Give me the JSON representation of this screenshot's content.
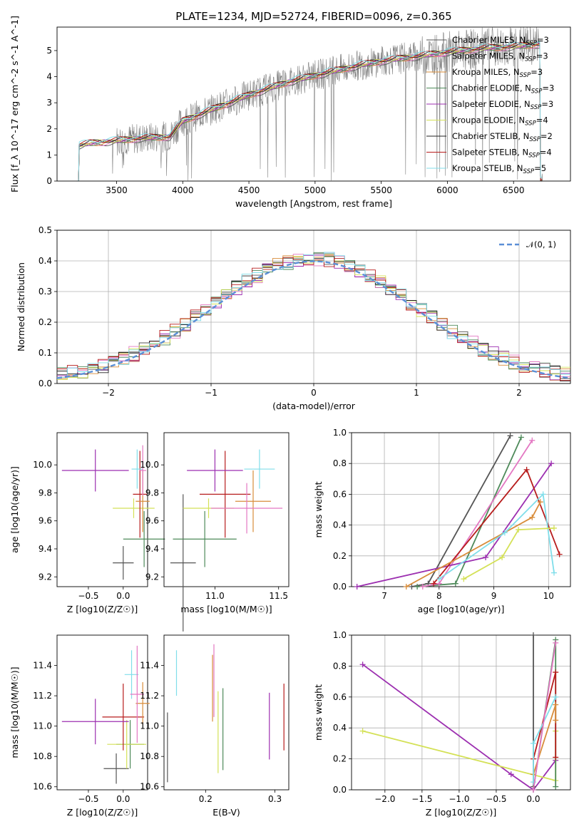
{
  "figure": {
    "title": "PLATE=1234, MJD=52724, FIBERID=0096, z=0.365"
  },
  "legend_entries": [
    {
      "label": "Chabrier MILES, N_SSP=3",
      "color": "#555555"
    },
    {
      "label": "Salpeter MILES, N_SSP=3",
      "color": "#e377c2"
    },
    {
      "label": "Kroupa MILES, N_SSP=3",
      "color": "#d88c3a"
    },
    {
      "label": "Chabrier ELODIE, N_SSP=3",
      "color": "#4e8a5a"
    },
    {
      "label": "Salpeter ELODIE, N_SSP=3",
      "color": "#9c2fb0"
    },
    {
      "label": "Kroupa ELODIE, N_SSP=4",
      "color": "#d4e157"
    },
    {
      "label": "Chabrier STELIB, N_SSP=2",
      "color": "#222222"
    },
    {
      "label": "Salpeter STELIB, N_SSP=4",
      "color": "#b71c1c"
    },
    {
      "label": "Kroupa STELIB, N_SSP=5",
      "color": "#80deea"
    }
  ],
  "chart_data": [
    {
      "type": "line",
      "id": "spectrum",
      "xlabel": "wavelength [Angstrom, rest frame]",
      "ylabel": "Flux [f_λ 10^-17 erg cm^-2 s^-1 A^-1]",
      "xlim": [
        3050,
        6930
      ],
      "ylim": [
        0,
        5.9
      ],
      "xticks": [
        3500,
        4000,
        4500,
        5000,
        5500,
        6000,
        6500
      ],
      "yticks": [
        0,
        1,
        2,
        3,
        4,
        5
      ],
      "grid": false,
      "legend_position": "top-right",
      "data_color": "#808080",
      "model_continuum": {
        "x": [
          3200,
          3300,
          3500,
          3700,
          3900,
          4000,
          4200,
          4500,
          4800,
          5000,
          5300,
          5500,
          5800,
          6000,
          6300,
          6500,
          6700
        ],
        "y": [
          1.35,
          1.45,
          1.55,
          1.65,
          1.7,
          2.3,
          2.7,
          3.3,
          3.8,
          4.05,
          4.4,
          4.6,
          4.8,
          4.95,
          5.1,
          5.15,
          5.25
        ]
      }
    },
    {
      "type": "bar",
      "id": "residual-histogram",
      "xlabel": "(data-model)/error",
      "ylabel": "Normed distribution",
      "xlim": [
        -2.5,
        2.5
      ],
      "ylim": [
        0,
        0.5
      ],
      "xticks": [
        -2,
        -1,
        0,
        1,
        2
      ],
      "yticks": [
        0.0,
        0.1,
        0.2,
        0.3,
        0.4,
        0.5
      ],
      "grid": true,
      "legend_position": "top-right",
      "reference_curve": {
        "name": "N(0,1)",
        "label": "𝒩(0, 1)",
        "color": "#5b8fd6",
        "mean": 0,
        "sigma": 1
      }
    },
    {
      "type": "scatter",
      "id": "age-vs-metallicity",
      "xlabel": "Z [log10(Z/Z☉)]",
      "ylabel": "age [log10(age/yr)]",
      "xlim": [
        -0.95,
        0.35
      ],
      "ylim": [
        9.13,
        10.23
      ],
      "xticks": [
        -0.5,
        0.0
      ],
      "yticks": [
        9.2,
        9.4,
        9.6,
        9.8,
        10.0
      ],
      "points": [
        {
          "x": 0.0,
          "y": 9.3,
          "xerr": 0.15,
          "yerr": 0.12,
          "color": "#555555"
        },
        {
          "x": 0.3,
          "y": 9.47,
          "xerr": 0.3,
          "yerr": 0.2,
          "color": "#4e8a5a"
        },
        {
          "x": 0.15,
          "y": 9.69,
          "xerr": 0.3,
          "yerr": 0.07,
          "color": "#d4e157"
        },
        {
          "x": 0.24,
          "y": 9.79,
          "xerr": 0.1,
          "yerr": 0.31,
          "color": "#b71c1c"
        },
        {
          "x": 0.28,
          "y": 9.74,
          "xerr": 0.1,
          "yerr": 0.22,
          "color": "#d88c3a"
        },
        {
          "x": -0.4,
          "y": 9.96,
          "xerr": 0.48,
          "yerr": 0.15,
          "color": "#9c2fb0"
        },
        {
          "x": 0.2,
          "y": 9.97,
          "xerr": 0.08,
          "yerr": 0.14,
          "color": "#80deea"
        },
        {
          "x": 0.28,
          "y": 9.96,
          "xerr": 0.05,
          "yerr": 0.18,
          "color": "#e377c2"
        }
      ]
    },
    {
      "type": "scatter",
      "id": "age-vs-mass",
      "xlabel": "mass [log10(M/M☉)]",
      "ylabel": "",
      "xlim": [
        10.6,
        11.58
      ],
      "ylim": [
        9.13,
        10.23
      ],
      "xticks": [
        11.0,
        11.5
      ],
      "yticks": [
        9.2,
        9.4,
        9.6,
        9.8,
        10.0
      ],
      "points": [
        {
          "x": 10.75,
          "y": 9.3,
          "xerr": 0.1,
          "yerr": 0.49,
          "color": "#555555"
        },
        {
          "x": 10.92,
          "y": 9.47,
          "xerr": 0.25,
          "yerr": 0.2,
          "color": "#4e8a5a"
        },
        {
          "x": 10.95,
          "y": 9.69,
          "xerr": 0.2,
          "yerr": 0.07,
          "color": "#d4e157"
        },
        {
          "x": 11.08,
          "y": 9.79,
          "xerr": 0.2,
          "yerr": 0.31,
          "color": "#b71c1c"
        },
        {
          "x": 11.3,
          "y": 9.74,
          "xerr": 0.14,
          "yerr": 0.22,
          "color": "#d88c3a"
        },
        {
          "x": 11.0,
          "y": 9.96,
          "xerr": 0.22,
          "yerr": 0.15,
          "color": "#9c2fb0"
        },
        {
          "x": 11.35,
          "y": 9.97,
          "xerr": 0.12,
          "yerr": 0.14,
          "color": "#80deea"
        },
        {
          "x": 11.25,
          "y": 9.69,
          "xerr": 0.28,
          "yerr": 0.18,
          "color": "#e377c2"
        }
      ]
    },
    {
      "type": "line",
      "id": "mass-weight-vs-age",
      "xlabel": "age [log10(age/yr)]",
      "ylabel": "mass weight",
      "xlim": [
        6.4,
        10.4
      ],
      "ylim": [
        0.0,
        1.0
      ],
      "xticks": [
        7,
        8,
        9,
        10
      ],
      "yticks": [
        0.0,
        0.2,
        0.4,
        0.6,
        0.8,
        1.0
      ],
      "grid": true,
      "series": [
        {
          "color": "#555555",
          "x": [
            7.5,
            7.8,
            9.3
          ],
          "y": [
            0.0,
            0.02,
            0.98
          ]
        },
        {
          "color": "#4e8a5a",
          "x": [
            7.6,
            8.3,
            9.5
          ],
          "y": [
            0.0,
            0.02,
            0.97
          ]
        },
        {
          "color": "#e377c2",
          "x": [
            7.7,
            8.0,
            9.7
          ],
          "y": [
            0.0,
            0.02,
            0.95
          ]
        },
        {
          "color": "#9c2fb0",
          "x": [
            6.5,
            8.85,
            10.05
          ],
          "y": [
            0.0,
            0.19,
            0.8
          ]
        },
        {
          "color": "#b71c1c",
          "x": [
            7.9,
            9.6,
            10.2
          ],
          "y": [
            0.02,
            0.76,
            0.21
          ]
        },
        {
          "color": "#d88c3a",
          "x": [
            7.4,
            9.7,
            9.85
          ],
          "y": [
            0.0,
            0.45,
            0.55
          ]
        },
        {
          "color": "#80deea",
          "x": [
            8.0,
            9.2,
            9.9,
            10.1
          ],
          "y": [
            0.05,
            0.35,
            0.6,
            0.09
          ]
        },
        {
          "color": "#d4e157",
          "x": [
            8.45,
            9.15,
            9.45,
            10.1
          ],
          "y": [
            0.05,
            0.19,
            0.37,
            0.38
          ]
        }
      ]
    },
    {
      "type": "scatter",
      "id": "mass-vs-metallicity",
      "xlabel": "Z [log10(Z/Z☉)]",
      "ylabel": "mass [log10(M/M☉)]",
      "xlim": [
        -0.95,
        0.35
      ],
      "ylim": [
        10.58,
        11.6
      ],
      "xticks": [
        -0.5,
        0.0
      ],
      "yticks": [
        10.6,
        10.8,
        11.0,
        11.2,
        11.4
      ],
      "points": [
        {
          "x": -0.1,
          "y": 10.72,
          "xerr": 0.18,
          "yerr": 0.1,
          "color": "#555555"
        },
        {
          "x": 0.1,
          "y": 10.88,
          "xerr": 0.2,
          "yerr": 0.16,
          "color": "#4e8a5a"
        },
        {
          "x": 0.05,
          "y": 10.88,
          "xerr": 0.28,
          "yerr": 0.16,
          "color": "#d4e157"
        },
        {
          "x": 0.0,
          "y": 11.06,
          "xerr": 0.3,
          "yerr": 0.22,
          "color": "#b71c1c"
        },
        {
          "x": 0.28,
          "y": 11.15,
          "xerr": 0.1,
          "yerr": 0.14,
          "color": "#d88c3a"
        },
        {
          "x": -0.4,
          "y": 11.03,
          "xerr": 0.48,
          "yerr": 0.15,
          "color": "#9c2fb0"
        },
        {
          "x": 0.12,
          "y": 11.34,
          "xerr": 0.1,
          "yerr": 0.16,
          "color": "#80deea"
        },
        {
          "x": 0.2,
          "y": 11.21,
          "xerr": 0.1,
          "yerr": 0.32,
          "color": "#e377c2"
        }
      ]
    },
    {
      "type": "scatter",
      "id": "mass-vs-ebv",
      "xlabel": "E(B-V)",
      "ylabel": "",
      "xlim": [
        0.14,
        0.32
      ],
      "ylim": [
        10.58,
        11.6
      ],
      "xticks": [
        0.2,
        0.3
      ],
      "yticks": [
        10.6,
        10.8,
        11.0,
        11.2,
        11.4
      ],
      "points": [
        {
          "x": 0.145,
          "y": 10.86,
          "xerr": 0,
          "yerr": 0.23,
          "color": "#555555"
        },
        {
          "x": 0.225,
          "y": 10.98,
          "xerr": 0,
          "yerr": 0.27,
          "color": "#4e8a5a"
        },
        {
          "x": 0.218,
          "y": 10.96,
          "xerr": 0,
          "yerr": 0.27,
          "color": "#d4e157"
        },
        {
          "x": 0.313,
          "y": 11.06,
          "xerr": 0,
          "yerr": 0.22,
          "color": "#b71c1c"
        },
        {
          "x": 0.21,
          "y": 11.25,
          "xerr": 0,
          "yerr": 0.22,
          "color": "#d88c3a"
        },
        {
          "x": 0.292,
          "y": 11.0,
          "xerr": 0,
          "yerr": 0.22,
          "color": "#9c2fb0"
        },
        {
          "x": 0.158,
          "y": 11.35,
          "xerr": 0,
          "yerr": 0.15,
          "color": "#80deea"
        },
        {
          "x": 0.212,
          "y": 11.3,
          "xerr": 0,
          "yerr": 0.24,
          "color": "#e377c2"
        }
      ]
    },
    {
      "type": "line",
      "id": "mass-weight-vs-metallicity",
      "xlabel": "Z [log10(Z/Z☉)]",
      "ylabel": "mass weight",
      "xlim": [
        -2.45,
        0.5
      ],
      "ylim": [
        0.0,
        1.0
      ],
      "xticks": [
        -2.0,
        -1.5,
        -1.0,
        -0.5,
        0.0
      ],
      "yticks": [
        0.0,
        0.2,
        0.4,
        0.6,
        0.8,
        1.0
      ],
      "grid": true,
      "series": [
        {
          "color": "#9c2fb0",
          "x": [
            -2.3,
            -0.3,
            0.0,
            0.3
          ],
          "y": [
            0.81,
            0.1,
            0.0,
            0.19
          ]
        },
        {
          "color": "#d4e157",
          "x": [
            -2.3,
            0.3,
            0.3
          ],
          "y": [
            0.38,
            0.06,
            0.38
          ]
        },
        {
          "color": "#555555",
          "x": [
            0.0,
            0.0
          ],
          "y": [
            0.02,
            1.0
          ]
        },
        {
          "color": "#4e8a5a",
          "x": [
            0.0,
            0.3,
            0.3
          ],
          "y": [
            0.0,
            0.97,
            0.02
          ]
        },
        {
          "color": "#b71c1c",
          "x": [
            0.0,
            0.3,
            0.3
          ],
          "y": [
            0.2,
            0.76,
            0.21
          ]
        },
        {
          "color": "#d88c3a",
          "x": [
            0.0,
            0.3,
            0.3
          ],
          "y": [
            0.1,
            0.55,
            0.45
          ]
        },
        {
          "color": "#80deea",
          "x": [
            0.0,
            0.0,
            0.3
          ],
          "y": [
            0.05,
            0.3,
            0.6
          ]
        },
        {
          "color": "#e377c2",
          "x": [
            0.0,
            0.3
          ],
          "y": [
            0.0,
            0.95
          ]
        }
      ]
    }
  ]
}
